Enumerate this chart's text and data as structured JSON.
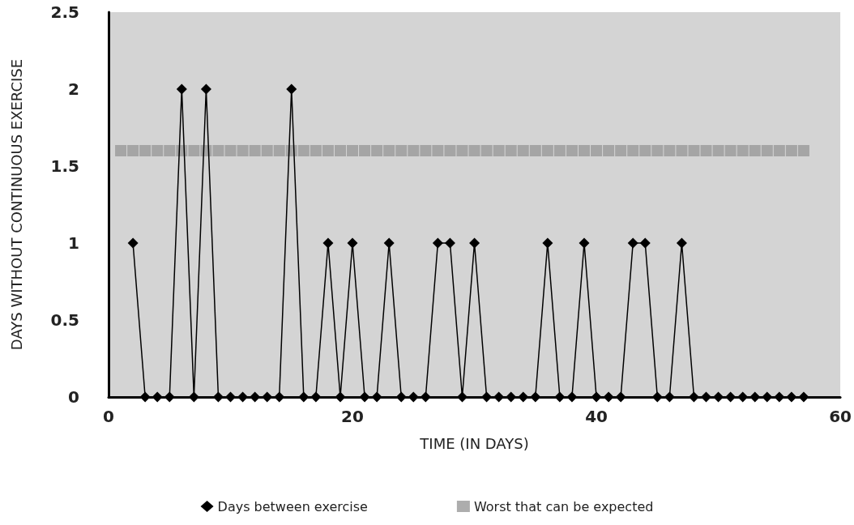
{
  "chart_data": {
    "type": "line",
    "xlabel": "TIME (IN DAYS)",
    "ylabel": "DAYS WITHOUT CONTINUOUS EXERCISE",
    "xlim": [
      0,
      60
    ],
    "xticks": [
      0,
      20,
      40,
      60
    ],
    "ylim": [
      0,
      2.5
    ],
    "yticks": [
      0,
      0.5,
      1,
      1.5,
      2,
      2.5
    ],
    "grid": false,
    "legend": "bottom",
    "marker": "diamond",
    "line_style": "solid",
    "series": [
      {
        "name": "Days between exercise",
        "color": "#000000",
        "x": [
          2,
          3,
          4,
          5,
          6,
          7,
          8,
          9,
          10,
          11,
          12,
          13,
          14,
          15,
          16,
          17,
          18,
          19,
          20,
          21,
          22,
          23,
          24,
          25,
          26,
          27,
          28,
          29,
          30,
          31,
          32,
          33,
          34,
          35,
          36,
          37,
          38,
          39,
          40,
          41,
          42,
          43,
          44,
          45,
          46,
          47,
          48,
          49,
          50,
          51,
          52,
          53,
          54,
          55,
          56,
          57
        ],
        "values": [
          1,
          0,
          0,
          0,
          2,
          0,
          2,
          0,
          0,
          0,
          0,
          0,
          0,
          2,
          0,
          0,
          1,
          0,
          1,
          0,
          0,
          1,
          0,
          0,
          0,
          1,
          1,
          0,
          1,
          0,
          0,
          0,
          0,
          0,
          1,
          0,
          0,
          1,
          0,
          0,
          0,
          1,
          1,
          0,
          0,
          1,
          0,
          0,
          0,
          0,
          0,
          0,
          0,
          0,
          0,
          0
        ]
      },
      {
        "name": "Worst that can be expected",
        "type": "scatter",
        "marker": "square",
        "color": "#999999",
        "x": [
          1,
          2,
          3,
          4,
          5,
          6,
          7,
          8,
          9,
          10,
          11,
          12,
          13,
          14,
          15,
          16,
          17,
          18,
          19,
          20,
          21,
          22,
          23,
          24,
          25,
          26,
          27,
          28,
          29,
          30,
          31,
          32,
          33,
          34,
          35,
          36,
          37,
          38,
          39,
          40,
          41,
          42,
          43,
          44,
          45,
          46,
          47,
          48,
          49,
          50,
          51,
          52,
          53,
          54,
          55,
          56,
          57
        ],
        "values": [
          1.6,
          1.6,
          1.6,
          1.6,
          1.6,
          1.6,
          1.6,
          1.6,
          1.6,
          1.6,
          1.6,
          1.6,
          1.6,
          1.6,
          1.6,
          1.6,
          1.6,
          1.6,
          1.6,
          1.6,
          1.6,
          1.6,
          1.6,
          1.6,
          1.6,
          1.6,
          1.6,
          1.6,
          1.6,
          1.6,
          1.6,
          1.6,
          1.6,
          1.6,
          1.6,
          1.6,
          1.6,
          1.6,
          1.6,
          1.6,
          1.6,
          1.6,
          1.6,
          1.6,
          1.6,
          1.6,
          1.6,
          1.6,
          1.6,
          1.6,
          1.6,
          1.6,
          1.6,
          1.6,
          1.6,
          1.6,
          1.6
        ]
      }
    ]
  }
}
